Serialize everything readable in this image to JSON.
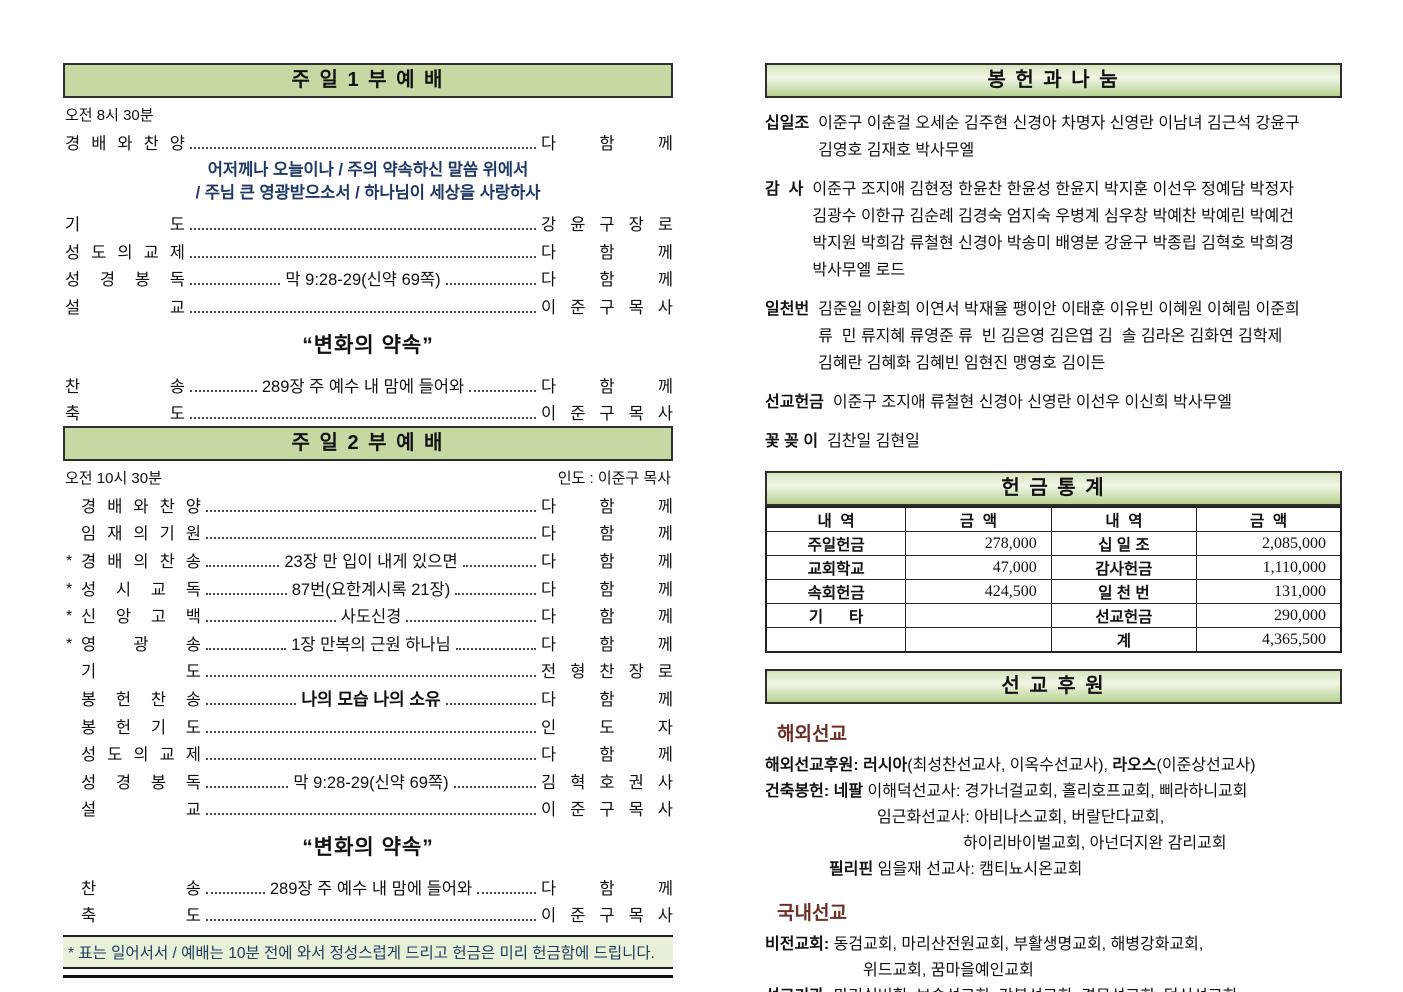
{
  "left": {
    "service1": {
      "title": "주 일 1 부 예 배",
      "time": "오전 8시 30분",
      "lines": [
        {
          "label": "경 배 와 찬 양",
          "right": "다 함 께"
        },
        {
          "medley": [
            "어저께나 오늘이나 / 주의 약속하신 말씀 위에서",
            "/ 주님 큰 영광받으소서 / 하나님이 세상을 사랑하사"
          ]
        },
        {
          "label": "기 도",
          "right": "강 윤 구 장 로"
        },
        {
          "label": "성 도 의 교 제",
          "right": "다 함 께"
        },
        {
          "label": "성 경 봉 독",
          "center": "막 9:28-29(신약 69쪽)",
          "right": "다 함 께"
        },
        {
          "label": "설 교",
          "right": "이 준 구 목 사"
        },
        {
          "sermon": "“변화의 약속”"
        },
        {
          "label": "찬 송",
          "center": "289장 주 예수 내 맘에 들어와",
          "right": "다 함 께"
        },
        {
          "label": "축 도",
          "right": "이 준 구 목 사"
        }
      ]
    },
    "service2": {
      "title": "주 일 2 부 예 배",
      "time": "오전 10시 30분",
      "leader": "인도 : 이준구 목사",
      "lines": [
        {
          "label": "경 배 와 찬 양",
          "right": "다 함 께"
        },
        {
          "label": "임 재 의 기 원",
          "right": "다 함 께"
        },
        {
          "star": true,
          "label": "경 배 의 찬 송",
          "center": "23장 만 입이 내게 있으면",
          "right": "다 함 께"
        },
        {
          "star": true,
          "label": "성 시 교 독",
          "center": "87번(요한계시록 21장)",
          "right": "다 함 께"
        },
        {
          "star": true,
          "label": "신 앙 고 백",
          "center": "사도신경",
          "right": "다 함 께"
        },
        {
          "star": true,
          "label": "영 광 송",
          "center": "1장 만복의 근원 하나님",
          "right": "다 함 께"
        },
        {
          "label": "기 도",
          "right": "전 형 찬 장 로"
        },
        {
          "label": "봉 헌 찬 송",
          "center": "나의 모습 나의 소유",
          "center_bold": true,
          "right": "다 함 께"
        },
        {
          "label": "봉 헌 기 도",
          "right": "인 도 자"
        },
        {
          "label": "성 도 의 교 제",
          "right": "다 함 께"
        },
        {
          "label": "성 경 봉 독",
          "center": "막 9:28-29(신약 69쪽)",
          "right": "김 혁 호 권 사"
        },
        {
          "label": "설 교",
          "right": "이 준 구 목 사"
        },
        {
          "sermon": "“변화의 약속”"
        },
        {
          "label": "찬 송",
          "center": "289장 주 예수 내 맘에 들어와",
          "right": "다 함 께"
        },
        {
          "label": "축 도",
          "right": "이 준 구 목 사"
        }
      ]
    },
    "note": "* 표는 일어서서 / 예배는 10분 전에 와서 정성스럽게 드리고 헌금은 미리 헌금함에 드립니다."
  },
  "right": {
    "offering": {
      "title": "봉 헌 과 나 눔",
      "groups": [
        {
          "label": "십일조",
          "lines": [
            "이준구 이춘걸 오세순 김주현 신경아 차명자 신영란 이남녀 김근석 강윤구",
            "김영호 김재호 박사무엘"
          ]
        },
        {
          "label": "감  사",
          "lines": [
            "이준구 조지애 김현정 한윤찬 한윤성 한윤지 박지훈 이선우 정예담 박정자",
            "김광수 이한규 김순례 김경숙 엄지숙 우병계 심우창 박예찬 박예린 박예건",
            "박지원 박희감 류철현 신경아 박송미 배영분 강윤구 박종립 김혁호 박희경",
            "박사무엘 로드"
          ]
        },
        {
          "label": "일천번",
          "lines": [
            "김준일 이환희 이연서 박재율 팽이안 이태훈 이유빈 이혜원 이혜림 이준희",
            "류  민 류지혜 류영준 류  빈 김은영 김은엽 김  솔 김라온 김화연 김학제",
            "김혜란 김혜화 김혜빈 임현진 맹영호 김이든"
          ]
        },
        {
          "label": "선교헌금",
          "lines": [
            "이준구 조지애 류철현 신경아 신영란 이선우 이신희 박사무엘"
          ]
        },
        {
          "label": "꽃 꽂 이",
          "lines": [
            "김찬일 김현일"
          ]
        }
      ]
    },
    "stats": {
      "title": "헌 금 통 계",
      "col_headers": [
        "내  역",
        "금  액",
        "내  역",
        "금  액"
      ],
      "rows": [
        [
          "주일헌금",
          "278,000",
          "십 일 조",
          "2,085,000"
        ],
        [
          "교회학교",
          "47,000",
          "감사헌금",
          "1,110,000"
        ],
        [
          "속회헌금",
          "424,500",
          "일 천 번",
          "131,000"
        ],
        [
          "기      타",
          "",
          "선교헌금",
          "290,000"
        ],
        [
          "",
          "",
          "계",
          "4,365,500"
        ]
      ]
    },
    "mission": {
      "title": "선 교 후 원",
      "overseas_heading": "해외선교",
      "overseas_lines": [
        {
          "indent": 0,
          "segs": [
            [
              "해외선교후원: ",
              1
            ],
            [
              "러시아",
              1
            ],
            [
              "(최성찬선교사, 이옥수선교사), ",
              0
            ],
            [
              "라오스",
              1
            ],
            [
              "(이준상선교사)",
              0
            ]
          ]
        },
        {
          "indent": 0,
          "segs": [
            [
              "건축봉헌: ",
              1
            ],
            [
              "네팔 ",
              1
            ],
            [
              "이해덕선교사: 경가너걸교회, 홀리호프교회, 삐라하니교회",
              0
            ]
          ]
        },
        {
          "indent": 112,
          "segs": [
            [
              "임근화선교사: 아비나스교회, 버랄단다교회,",
              0
            ]
          ]
        },
        {
          "indent": 198,
          "segs": [
            [
              "하이리바이벌교회, 아넌더지완 감리교회",
              0
            ]
          ]
        },
        {
          "indent": 64,
          "segs": [
            [
              "필리핀",
              1
            ],
            [
              " 임을재 선교사: 캠티뇨시온교회",
              0
            ]
          ]
        }
      ],
      "domestic_heading": "국내선교",
      "domestic_lines": [
        {
          "indent": 0,
          "segs": [
            [
              "비전교회: ",
              1
            ],
            [
              "동검교회, 마리산전원교회, 부활생명교회, 해병강화교회,",
              0
            ]
          ]
        },
        {
          "indent": 98,
          "segs": [
            [
              "위드교회, 꿈마을예인교회",
              0
            ]
          ]
        },
        {
          "indent": 0,
          "segs": [
            [
              "선교기관: ",
              1
            ],
            [
              "마리실버힐, 브솔선교회, 강복선교회, 경목선교회, 덕신선교회",
              0
            ]
          ]
        }
      ]
    }
  }
}
